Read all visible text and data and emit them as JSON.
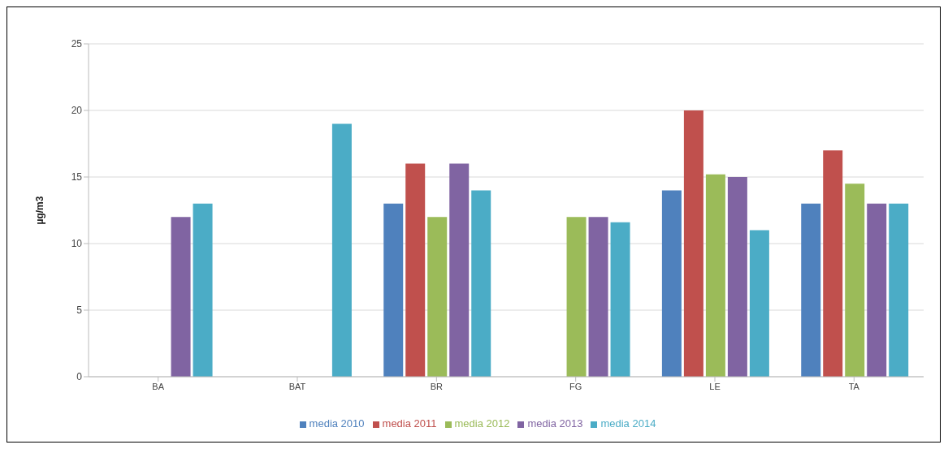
{
  "chart_data": {
    "type": "bar",
    "ylabel": "µg/m3",
    "categories": [
      "BA",
      "BAT",
      "BR",
      "FG",
      "LE",
      "TA"
    ],
    "series": [
      {
        "name": "media 2010",
        "color": "#4f81bd",
        "values": [
          null,
          null,
          13,
          null,
          14,
          13
        ]
      },
      {
        "name": "media 2011",
        "color": "#c0504d",
        "values": [
          null,
          null,
          16,
          null,
          20,
          17
        ]
      },
      {
        "name": "media 2012",
        "color": "#9bbb59",
        "values": [
          null,
          null,
          12,
          12,
          15.2,
          14.5
        ]
      },
      {
        "name": "media 2013",
        "color": "#8064a2",
        "values": [
          12,
          null,
          16,
          12,
          15,
          13
        ]
      },
      {
        "name": "media 2014",
        "color": "#4bacc6",
        "values": [
          13,
          19,
          14,
          11.6,
          11,
          13
        ]
      }
    ],
    "ylim": [
      0,
      25
    ],
    "yticks": [
      0,
      5,
      10,
      15,
      20,
      25
    ],
    "grid": "y",
    "legend": "bottom"
  }
}
